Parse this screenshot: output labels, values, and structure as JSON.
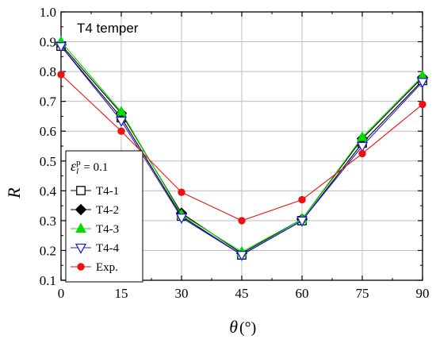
{
  "chart_data": {
    "type": "line",
    "title": "",
    "annotation": "T4 temper",
    "xlabel": "θ",
    "xunit": "(°)",
    "ylabel": "R",
    "x": [
      0,
      15,
      30,
      45,
      60,
      75,
      90
    ],
    "xlim": [
      0,
      90
    ],
    "ylim": [
      0.1,
      1.0
    ],
    "xticks": [
      "0",
      "15",
      "30",
      "45",
      "60",
      "75",
      "90"
    ],
    "yticks": [
      "0.1",
      "0.2",
      "0.3",
      "0.4",
      "0.5",
      "0.6",
      "0.7",
      "0.8",
      "0.9",
      "1.0"
    ],
    "grid": true,
    "legend_position": "bottom-left",
    "legend_header": {
      "symbol": "ε",
      "sub": "l",
      "sup": "p",
      "rest": " = 0.1"
    },
    "series": [
      {
        "name": "T4-1",
        "color": "#000000",
        "marker": "square-open",
        "values": [
          0.885,
          0.645,
          0.315,
          0.185,
          0.3,
          0.56,
          0.77
        ]
      },
      {
        "name": "T4-2",
        "color": "#000000",
        "marker": "diamond-filled",
        "values": [
          0.89,
          0.66,
          0.325,
          0.19,
          0.305,
          0.575,
          0.78
        ]
      },
      {
        "name": "T4-3",
        "color": "#00dd00",
        "marker": "triangle-up-filled",
        "values": [
          0.9,
          0.665,
          0.32,
          0.195,
          0.305,
          0.58,
          0.785
        ]
      },
      {
        "name": "T4-4",
        "color": "#1f1fd0",
        "marker": "triangle-down-open",
        "values": [
          0.885,
          0.635,
          0.31,
          0.185,
          0.3,
          0.55,
          0.765
        ]
      },
      {
        "name": "Exp.",
        "color": "#ee1111",
        "marker": "circle-filled",
        "values": [
          0.79,
          0.6,
          0.395,
          0.3,
          0.37,
          0.525,
          0.69
        ]
      }
    ]
  }
}
